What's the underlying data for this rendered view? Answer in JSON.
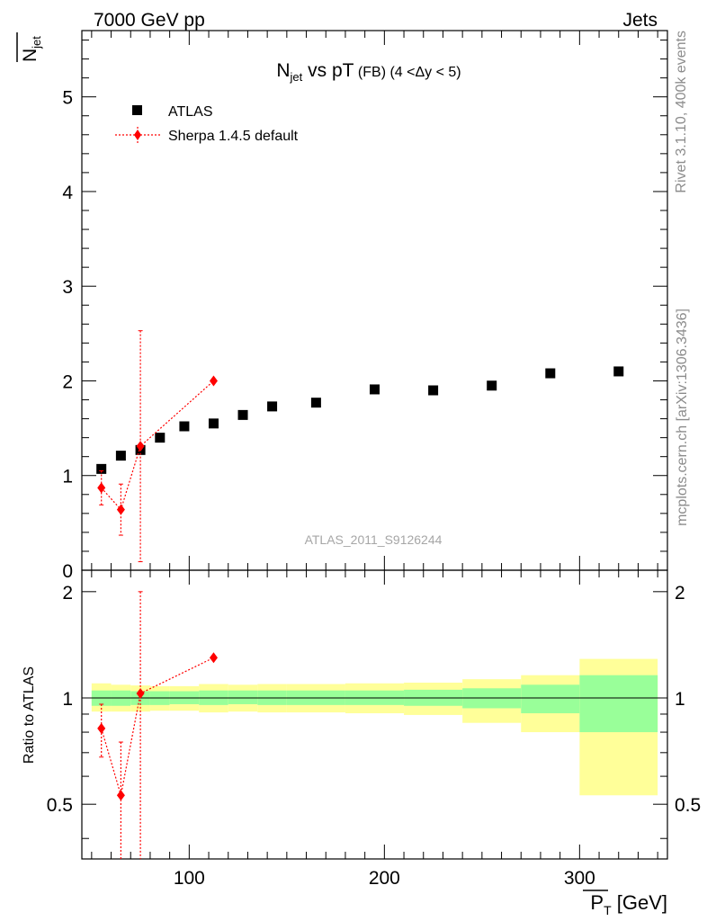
{
  "header": {
    "left": "7000 GeV pp",
    "right": "Jets"
  },
  "side_texts": {
    "rivet": "Rivet 3.1.10,  400k events",
    "mcplots": "mcplots.cern.ch [arXiv:1306.3436]"
  },
  "chart_data": {
    "type": "scatter",
    "title": {
      "main": "N",
      "sub": "jet",
      "rest": " vs pT",
      "small": " (FB) (4 <Δy < 5)"
    },
    "watermark": "ATLAS_2011_S9126244",
    "ylabel": {
      "main": "N",
      "sub": "jet"
    },
    "xlabel": {
      "main": "P",
      "sub": "T",
      "unit": " [GeV]"
    },
    "ratio_ylabel": "Ratio to ATLAS",
    "xlim": [
      45,
      345
    ],
    "ylim": [
      0,
      5.7
    ],
    "ratio_ylim": [
      0.35,
      2.3
    ],
    "main_yticks": [
      "0",
      "1",
      "2",
      "3",
      "4",
      "5"
    ],
    "ratio_yticks": [
      "0.5",
      "1",
      "2"
    ],
    "xticks": [
      "100",
      "200",
      "300"
    ],
    "legend": [
      {
        "label": "ATLAS",
        "marker": "square",
        "color": "#000000"
      },
      {
        "label": "Sherpa 1.4.5 default",
        "marker": "diamond",
        "color": "#ff0000"
      }
    ],
    "series": [
      {
        "name": "ATLAS",
        "x": [
          55,
          65,
          75,
          85,
          97.5,
          112.5,
          127.5,
          142.5,
          165,
          195,
          225,
          255,
          285,
          320
        ],
        "y": [
          1.07,
          1.21,
          1.27,
          1.4,
          1.52,
          1.55,
          1.64,
          1.73,
          1.77,
          1.91,
          1.9,
          1.95,
          2.08,
          2.1
        ]
      },
      {
        "name": "Sherpa 1.4.5 default",
        "x": [
          55,
          65,
          75,
          112.5
        ],
        "y": [
          0.87,
          0.64,
          1.31,
          2.0
        ],
        "yerr_low": [
          0.18,
          0.27,
          1.22,
          0.0
        ],
        "yerr_high": [
          0.18,
          0.27,
          1.22,
          0.0
        ],
        "ratio": [
          0.82,
          0.53,
          1.03,
          1.3
        ],
        "ratio_err_low": [
          0.14,
          0.22,
          0.7,
          0.0
        ],
        "ratio_err_high": [
          0.14,
          0.22,
          0.97,
          0.0
        ]
      }
    ],
    "ratio_bands": {
      "edges": [
        50,
        60,
        70,
        80,
        90,
        105,
        120,
        135,
        150,
        180,
        210,
        240,
        270,
        300,
        340
      ],
      "stat_low": [
        0.95,
        0.95,
        0.955,
        0.955,
        0.96,
        0.955,
        0.96,
        0.955,
        0.955,
        0.955,
        0.95,
        0.935,
        0.905,
        0.8
      ],
      "stat_high": [
        1.05,
        1.05,
        1.045,
        1.045,
        1.045,
        1.05,
        1.05,
        1.05,
        1.05,
        1.05,
        1.055,
        1.065,
        1.09,
        1.16
      ],
      "total_low": [
        0.915,
        0.915,
        0.915,
        0.92,
        0.92,
        0.91,
        0.915,
        0.91,
        0.91,
        0.905,
        0.895,
        0.85,
        0.8,
        0.53
      ],
      "total_high": [
        1.1,
        1.09,
        1.085,
        1.08,
        1.08,
        1.095,
        1.09,
        1.095,
        1.095,
        1.1,
        1.105,
        1.13,
        1.16,
        1.29
      ]
    }
  }
}
